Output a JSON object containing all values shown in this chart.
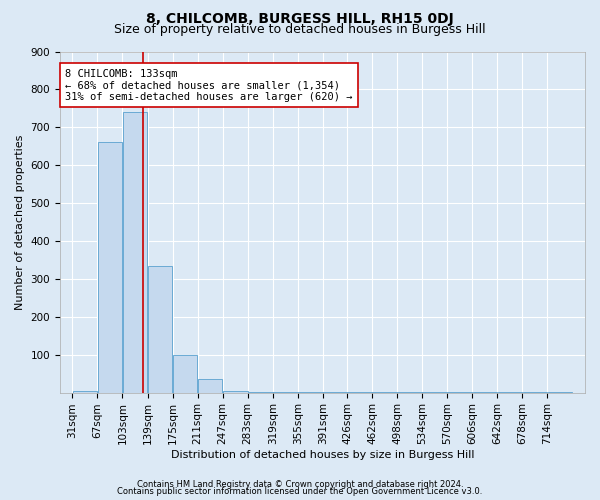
{
  "title": "8, CHILCOMB, BURGESS HILL, RH15 0DJ",
  "subtitle": "Size of property relative to detached houses in Burgess Hill",
  "xlabel": "Distribution of detached houses by size in Burgess Hill",
  "ylabel": "Number of detached properties",
  "footnote1": "Contains HM Land Registry data © Crown copyright and database right 2024.",
  "footnote2": "Contains public sector information licensed under the Open Government Licence v3.0.",
  "bin_edges": [
    31,
    67,
    103,
    139,
    175,
    211,
    247,
    283,
    319,
    355,
    391,
    426,
    462,
    498,
    534,
    570,
    606,
    642,
    678,
    714,
    750
  ],
  "bar_heights": [
    5,
    660,
    740,
    335,
    100,
    35,
    5,
    2,
    2,
    2,
    2,
    2,
    2,
    2,
    2,
    2,
    2,
    2,
    2,
    2
  ],
  "bar_color": "#c5d9ee",
  "bar_edge_color": "#6aaad4",
  "property_size": 133,
  "vline_color": "#cc0000",
  "annotation_text": "8 CHILCOMB: 133sqm\n← 68% of detached houses are smaller (1,354)\n31% of semi-detached houses are larger (620) →",
  "annotation_box_color": "#ffffff",
  "annotation_box_edge_color": "#cc0000",
  "ylim": [
    0,
    900
  ],
  "yticks": [
    100,
    200,
    300,
    400,
    500,
    600,
    700,
    800,
    900
  ],
  "background_color": "#dce9f5",
  "plot_bg_color": "#dce9f5",
  "title_fontsize": 10,
  "subtitle_fontsize": 9,
  "axis_label_fontsize": 8,
  "tick_fontsize": 7.5,
  "annotation_fontsize": 7.5,
  "footnote_fontsize": 6
}
